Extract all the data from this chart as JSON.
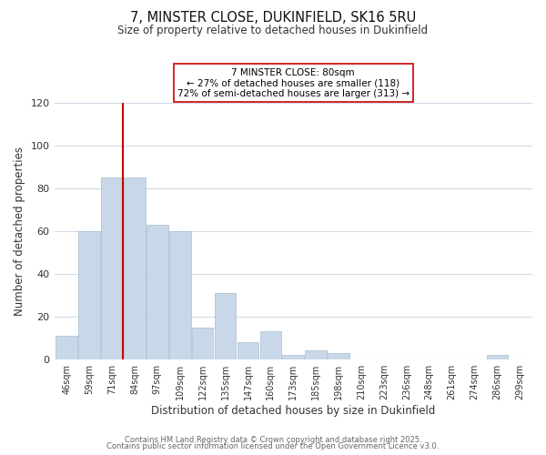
{
  "title": "7, MINSTER CLOSE, DUKINFIELD, SK16 5RU",
  "subtitle": "Size of property relative to detached houses in Dukinfield",
  "xlabel": "Distribution of detached houses by size in Dukinfield",
  "ylabel": "Number of detached properties",
  "bar_labels": [
    "46sqm",
    "59sqm",
    "71sqm",
    "84sqm",
    "97sqm",
    "109sqm",
    "122sqm",
    "135sqm",
    "147sqm",
    "160sqm",
    "173sqm",
    "185sqm",
    "198sqm",
    "210sqm",
    "223sqm",
    "236sqm",
    "248sqm",
    "261sqm",
    "274sqm",
    "286sqm",
    "299sqm"
  ],
  "bar_values": [
    11,
    60,
    85,
    85,
    63,
    60,
    15,
    31,
    8,
    13,
    2,
    4,
    3,
    0,
    0,
    0,
    0,
    0,
    0,
    2,
    0
  ],
  "bar_color": "#c8d8e8",
  "bar_edge_color": "#a8bece",
  "vline_color": "#cc0000",
  "annotation_title": "7 MINSTER CLOSE: 80sqm",
  "annotation_line1": "← 27% of detached houses are smaller (118)",
  "annotation_line2": "72% of semi-detached houses are larger (313) →",
  "annotation_box_color": "#ffffff",
  "annotation_box_edge": "#cc0000",
  "ylim": [
    0,
    120
  ],
  "yticks": [
    0,
    20,
    40,
    60,
    80,
    100,
    120
  ],
  "footer1": "Contains HM Land Registry data © Crown copyright and database right 2025.",
  "footer2": "Contains public sector information licensed under the Open Government Licence v3.0.",
  "background_color": "#ffffff",
  "grid_color": "#d0dce8"
}
